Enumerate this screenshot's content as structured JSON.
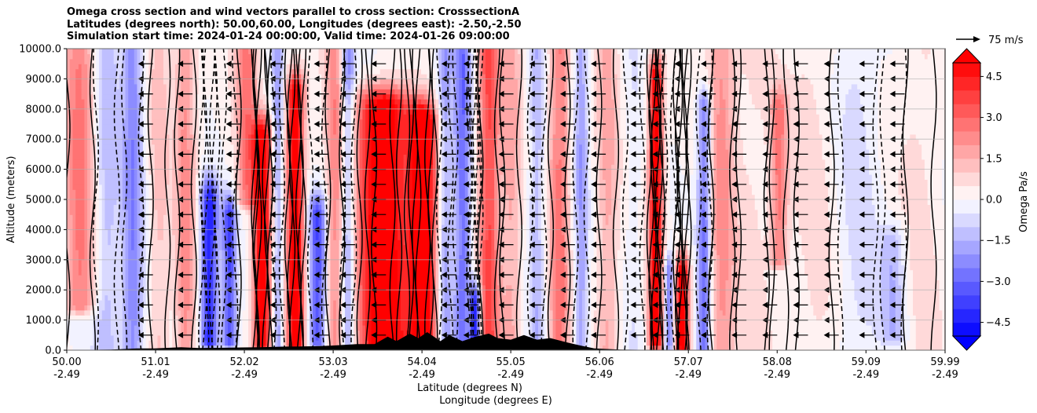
{
  "chart_data": {
    "type": "heatmap",
    "title_lines": [
      "Omega cross section and wind vectors parallel to cross section: CrosssectionA",
      "Latitudes (degrees north): 50.00,60.00, Longitudes (degrees east): -2.50,-2.50",
      "Simulation start time: 2024-01-24 00:00:00, Valid time: 2024-01-26 09:00:00"
    ],
    "ylabel": "Altitude (meters)",
    "xlabel_lines": [
      "Latitude (degrees N)",
      "Longitude (degrees E)"
    ],
    "ylim": [
      0,
      10000
    ],
    "xlim": [
      50.0,
      59.99
    ],
    "y_ticks": [
      0,
      1000,
      2000,
      3000,
      4000,
      5000,
      6000,
      7000,
      8000,
      9000,
      10000
    ],
    "y_tick_labels": [
      "0.0",
      "1000.0",
      "2000.0",
      "3000.0",
      "4000.0",
      "5000.0",
      "6000.0",
      "7000.0",
      "8000.0",
      "9000.0",
      "10000.0"
    ],
    "x_ticks": [
      50.0,
      51.01,
      52.02,
      53.03,
      54.04,
      55.05,
      56.06,
      57.07,
      58.08,
      59.09,
      59.99
    ],
    "x_tick_labels": [
      {
        "lat": "50.00",
        "lon": "-2.49"
      },
      {
        "lat": "51.01",
        "lon": "-2.49"
      },
      {
        "lat": "52.02",
        "lon": "-2.49"
      },
      {
        "lat": "53.03",
        "lon": "-2.49"
      },
      {
        "lat": "54.04",
        "lon": "-2.49"
      },
      {
        "lat": "55.05",
        "lon": "-2.49"
      },
      {
        "lat": "56.06",
        "lon": "-2.49"
      },
      {
        "lat": "57.07",
        "lon": "-2.49"
      },
      {
        "lat": "58.08",
        "lon": "-2.49"
      },
      {
        "lat": "59.09",
        "lon": "-2.49"
      },
      {
        "lat": "59.99",
        "lon": "-2.49"
      }
    ],
    "grid": "horizontal",
    "colorbar": {
      "label": "Omega Pa/s",
      "range": [
        -5,
        5
      ],
      "levels": [
        -5,
        -4.5,
        -4,
        -3.5,
        -3,
        -2.5,
        -2,
        -1.5,
        -1,
        -0.5,
        0,
        0.5,
        1,
        1.5,
        2,
        2.5,
        3,
        3.5,
        4,
        4.5,
        5
      ],
      "ticks": [
        -4.5,
        -3.0,
        -1.5,
        0.0,
        1.5,
        3.0,
        4.5
      ],
      "tick_labels": [
        "−4.5",
        "−3.0",
        "−1.5",
        "0.0",
        "1.5",
        "3.0",
        "4.5"
      ],
      "colormap": "bwr",
      "extend": "both"
    },
    "quiver_key": {
      "label": "75 m/s",
      "direction": "right"
    },
    "omega_bands": [
      {
        "lat": 50.15,
        "omega": 2.5,
        "width": 0.18,
        "top": 10000,
        "bottom": 1500
      },
      {
        "lat": 50.45,
        "omega": -1.5,
        "width": 0.15,
        "top": 10000,
        "bottom": 0
      },
      {
        "lat": 50.75,
        "omega": -2.5,
        "width": 0.12,
        "top": 10000,
        "bottom": 0
      },
      {
        "lat": 51.05,
        "omega": 1.0,
        "width": 0.12,
        "top": 10000,
        "bottom": 0
      },
      {
        "lat": 51.35,
        "omega": 2.0,
        "width": 0.12,
        "top": 10000,
        "bottom": 0
      },
      {
        "lat": 51.62,
        "omega": -4.5,
        "width": 0.1,
        "top": 5000,
        "bottom": 300
      },
      {
        "lat": 51.85,
        "omega": -3.5,
        "width": 0.08,
        "top": 4500,
        "bottom": 300
      },
      {
        "lat": 52.05,
        "omega": 2.5,
        "width": 0.12,
        "top": 10000,
        "bottom": 5000
      },
      {
        "lat": 52.22,
        "omega": 5.5,
        "width": 0.1,
        "top": 7000,
        "bottom": 200
      },
      {
        "lat": 52.4,
        "omega": -2.0,
        "width": 0.06,
        "top": 10000,
        "bottom": 0
      },
      {
        "lat": 52.6,
        "omega": 5.5,
        "width": 0.1,
        "top": 8500,
        "bottom": 200
      },
      {
        "lat": 52.85,
        "omega": -3.5,
        "width": 0.1,
        "top": 4500,
        "bottom": 300
      },
      {
        "lat": 53.05,
        "omega": 2.0,
        "width": 0.1,
        "top": 10000,
        "bottom": 0
      },
      {
        "lat": 53.2,
        "omega": -2.5,
        "width": 0.08,
        "top": 10000,
        "bottom": 0
      },
      {
        "lat": 53.6,
        "omega": 6.0,
        "width": 0.3,
        "top": 8000,
        "bottom": 300
      },
      {
        "lat": 54.05,
        "omega": 6.0,
        "width": 0.15,
        "top": 7500,
        "bottom": 300
      },
      {
        "lat": 54.3,
        "omega": -2.0,
        "width": 0.08,
        "top": 10000,
        "bottom": 0
      },
      {
        "lat": 54.5,
        "omega": -3.0,
        "width": 0.1,
        "top": 10000,
        "bottom": 0
      },
      {
        "lat": 54.65,
        "omega": -5.0,
        "width": 0.06,
        "top": 1500,
        "bottom": 200
      },
      {
        "lat": 54.8,
        "omega": 3.5,
        "width": 0.12,
        "top": 10000,
        "bottom": 0
      },
      {
        "lat": 55.05,
        "omega": 1.5,
        "width": 0.12,
        "top": 10000,
        "bottom": 0
      },
      {
        "lat": 55.35,
        "omega": -1.5,
        "width": 0.1,
        "top": 10000,
        "bottom": 0
      },
      {
        "lat": 55.6,
        "omega": 2.5,
        "width": 0.12,
        "top": 10000,
        "bottom": 0
      },
      {
        "lat": 55.85,
        "omega": -2.0,
        "width": 0.08,
        "top": 10000,
        "bottom": 0
      },
      {
        "lat": 56.15,
        "omega": 1.5,
        "width": 0.12,
        "top": 10000,
        "bottom": 0
      },
      {
        "lat": 56.45,
        "omega": -0.5,
        "width": 0.12,
        "top": 10000,
        "bottom": 0
      },
      {
        "lat": 56.7,
        "omega": 5.5,
        "width": 0.08,
        "top": 9000,
        "bottom": 300
      },
      {
        "lat": 56.85,
        "omega": -3.0,
        "width": 0.06,
        "top": 2500,
        "bottom": 200
      },
      {
        "lat": 57.0,
        "omega": 5.5,
        "width": 0.08,
        "top": 2500,
        "bottom": 200
      },
      {
        "lat": 57.25,
        "omega": -3.0,
        "width": 0.08,
        "top": 8000,
        "bottom": 0
      },
      {
        "lat": 57.45,
        "omega": 2.0,
        "width": 0.15,
        "top": 10000,
        "bottom": 0
      },
      {
        "lat": 57.8,
        "omega": 0.5,
        "width": 0.2,
        "top": 10000,
        "bottom": 0
      },
      {
        "lat": 58.1,
        "omega": 2.5,
        "width": 0.1,
        "top": 8000,
        "bottom": 3000
      },
      {
        "lat": 58.5,
        "omega": 0.5,
        "width": 0.25,
        "top": 10000,
        "bottom": 0
      },
      {
        "lat": 59.0,
        "omega": -0.8,
        "width": 0.25,
        "top": 10000,
        "bottom": 0
      },
      {
        "lat": 59.4,
        "omega": -1.5,
        "width": 0.15,
        "top": 3500,
        "bottom": 500
      },
      {
        "lat": 59.7,
        "omega": 0.5,
        "width": 0.2,
        "top": 10000,
        "bottom": 0
      }
    ],
    "terrain": [
      {
        "lat": 50.0,
        "h": 0
      },
      {
        "lat": 50.5,
        "h": 20
      },
      {
        "lat": 50.8,
        "h": 60
      },
      {
        "lat": 51.0,
        "h": 60
      },
      {
        "lat": 51.3,
        "h": 100
      },
      {
        "lat": 51.5,
        "h": 70
      },
      {
        "lat": 51.8,
        "h": 80
      },
      {
        "lat": 52.0,
        "h": 90
      },
      {
        "lat": 52.2,
        "h": 100
      },
      {
        "lat": 52.5,
        "h": 120
      },
      {
        "lat": 52.8,
        "h": 130
      },
      {
        "lat": 53.0,
        "h": 150
      },
      {
        "lat": 53.3,
        "h": 200
      },
      {
        "lat": 53.5,
        "h": 200
      },
      {
        "lat": 53.65,
        "h": 450
      },
      {
        "lat": 53.75,
        "h": 300
      },
      {
        "lat": 53.9,
        "h": 550
      },
      {
        "lat": 54.0,
        "h": 400
      },
      {
        "lat": 54.1,
        "h": 600
      },
      {
        "lat": 54.25,
        "h": 300
      },
      {
        "lat": 54.35,
        "h": 500
      },
      {
        "lat": 54.5,
        "h": 300
      },
      {
        "lat": 54.65,
        "h": 450
      },
      {
        "lat": 54.8,
        "h": 550
      },
      {
        "lat": 54.9,
        "h": 400
      },
      {
        "lat": 55.05,
        "h": 350
      },
      {
        "lat": 55.2,
        "h": 500
      },
      {
        "lat": 55.35,
        "h": 350
      },
      {
        "lat": 55.5,
        "h": 400
      },
      {
        "lat": 55.7,
        "h": 250
      },
      {
        "lat": 55.85,
        "h": 150
      },
      {
        "lat": 56.0,
        "h": 60
      },
      {
        "lat": 56.3,
        "h": 20
      },
      {
        "lat": 56.6,
        "h": 10
      },
      {
        "lat": 57.0,
        "h": 10
      },
      {
        "lat": 57.4,
        "h": 0
      },
      {
        "lat": 59.99,
        "h": 0
      }
    ],
    "wind_vectors": {
      "direction": "left",
      "altitude_step": 500,
      "column_latitudes": [
        50.9,
        51.35,
        51.9,
        52.4,
        52.9,
        53.2,
        53.55,
        54.35,
        54.6,
        55.0,
        55.35,
        55.7,
        56.05,
        56.5,
        56.75,
        57.0,
        57.3,
        57.65,
        58.0,
        58.35,
        58.7,
        59.1,
        59.45
      ]
    }
  }
}
